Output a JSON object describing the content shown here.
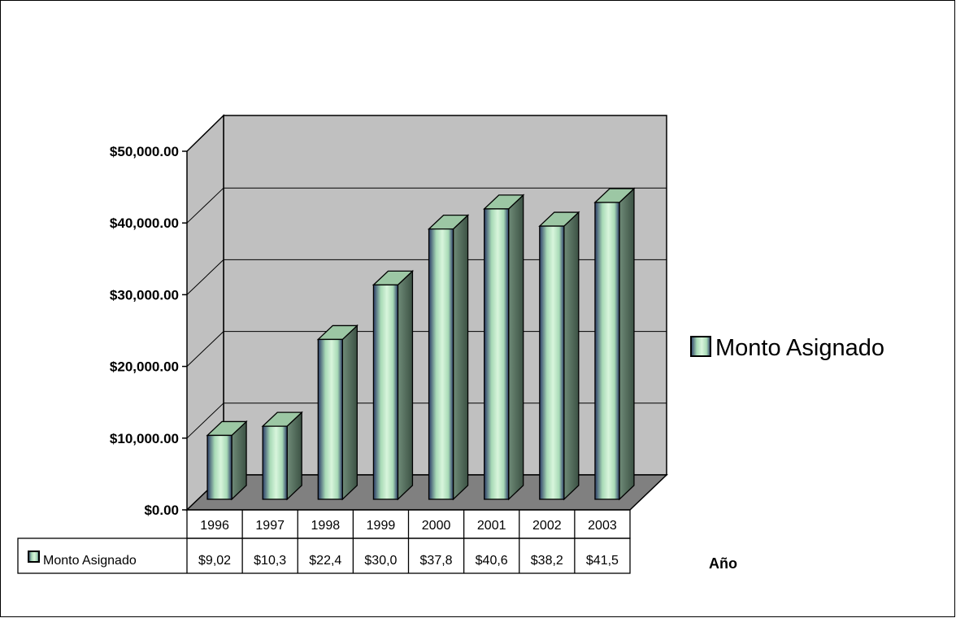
{
  "chart_data": {
    "type": "bar",
    "categories": [
      "1996",
      "1997",
      "1998",
      "1999",
      "2000",
      "2001",
      "2002",
      "2003"
    ],
    "series": [
      {
        "name": "Monto Asignado",
        "values": [
          9020,
          10300,
          22400,
          30000,
          37800,
          40600,
          38200,
          41500
        ],
        "table_labels": [
          "$9,02",
          "$10,3",
          "$22,4",
          "$30,0",
          "$37,8",
          "$40,6",
          "$38,2",
          "$41,5"
        ]
      }
    ],
    "yticks": [
      "$0.00",
      "$10,000.00",
      "$20,000.00",
      "$30,000.00",
      "$40,000.00",
      "$50,000.00"
    ],
    "ylim": [
      0,
      50000
    ],
    "xlabel": "Año",
    "ylabel": "",
    "title": "",
    "grid": true,
    "legend": {
      "position": "right",
      "label": "Monto Asignado"
    },
    "colors": {
      "bar_light": "#d8f5dc",
      "bar_mid": "#a8dab6",
      "bar_dark": "#2a3a66",
      "bar_side": "#4f6a58",
      "bar_top": "#9cc7a4",
      "back_wall": "#c0c0c0",
      "side_wall": "#c0c0c0",
      "floor": "#808080"
    }
  }
}
